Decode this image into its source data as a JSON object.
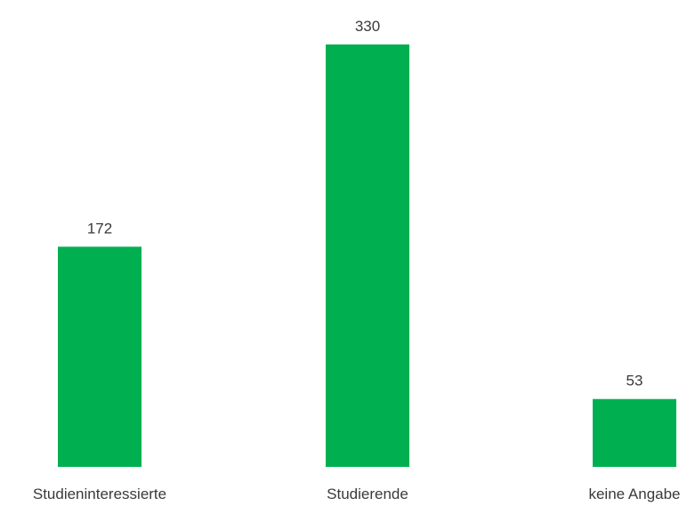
{
  "chart_data": {
    "type": "bar",
    "categories": [
      "Studieninteressierte",
      "Studierende",
      "keine Angabe"
    ],
    "values": [
      172,
      330,
      53
    ],
    "title": "",
    "xlabel": "",
    "ylabel": "",
    "ylim": [
      0,
      330
    ],
    "grid": false,
    "legend": "none",
    "bar_color": "#00b050",
    "data_labels": true
  }
}
